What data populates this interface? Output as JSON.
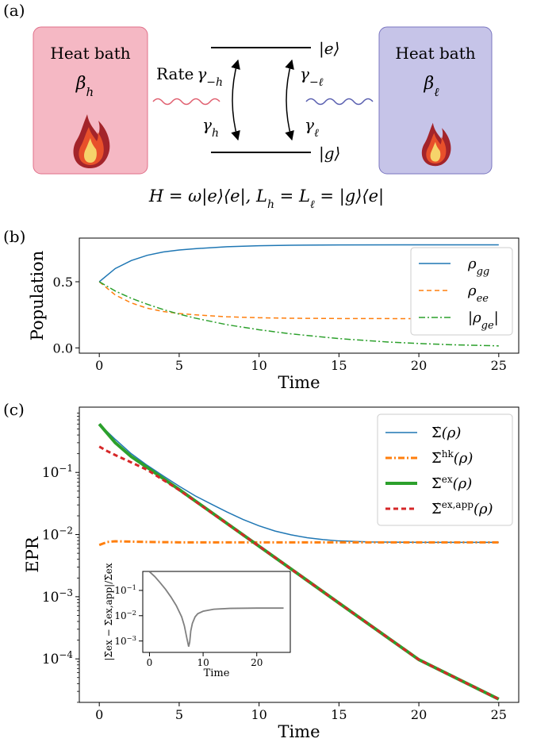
{
  "panel_a": {
    "label": "(a)",
    "left_bath": {
      "title": "Heat bath",
      "beta": "β",
      "beta_sub": "h"
    },
    "right_bath": {
      "title": "Heat bath",
      "beta": "β",
      "beta_sub": "ℓ"
    },
    "rate_word": "Rate",
    "rate_left_up": "γ",
    "rate_left_up_sub": "−h",
    "rate_left_down": "γ",
    "rate_left_down_sub": "h",
    "rate_right_up": "γ",
    "rate_right_up_sub": "−ℓ",
    "rate_right_down": "γ",
    "rate_right_down_sub": "ℓ",
    "ket_e": "|e⟩",
    "ket_g": "|g⟩",
    "hamiltonian": "H = ω|e⟩⟨e|,  L",
    "hamiltonian_sub_h": "h",
    "hamiltonian_mid": " = L",
    "hamiltonian_sub_l": "ℓ",
    "hamiltonian_end": " = |g⟩⟨e|",
    "colors": {
      "left_bath_fill": "#f5b8c4",
      "left_bath_stroke": "#e0708a",
      "right_bath_fill": "#c6c4e8",
      "right_bath_stroke": "#7a76c0",
      "left_wave": "#e06070",
      "right_wave": "#5a60b0",
      "flame_outer": "#a3242a",
      "flame_mid": "#e8502a",
      "flame_inner": "#f6d36a"
    }
  },
  "chart_data": [
    {
      "panel": "(b)",
      "type": "line",
      "xlabel": "Time",
      "ylabel": "Population",
      "xlim": [
        -1.25,
        26.25
      ],
      "ylim": [
        -0.04,
        0.83
      ],
      "xticks": [
        0,
        5,
        10,
        15,
        20,
        25
      ],
      "yticks": [
        0.0,
        0.5
      ],
      "ytick_labels": [
        "0.0",
        "0.5"
      ],
      "legend_position": "right",
      "series": [
        {
          "name": "ρgg",
          "label_main": "ρ",
          "label_sub": "gg",
          "color": "#1f77b4",
          "dash": "solid",
          "x": [
            0,
            1,
            2,
            3,
            4,
            5,
            6,
            8,
            10,
            12,
            15,
            20,
            25
          ],
          "y": [
            0.5,
            0.6,
            0.66,
            0.7,
            0.725,
            0.74,
            0.75,
            0.765,
            0.772,
            0.776,
            0.778,
            0.779,
            0.779
          ]
        },
        {
          "name": "ρee",
          "label_main": "ρ",
          "label_sub": "ee",
          "color": "#ff7f0e",
          "dash": "dashed",
          "x": [
            0,
            1,
            2,
            3,
            4,
            5,
            6,
            8,
            10,
            12,
            15,
            20,
            25
          ],
          "y": [
            0.5,
            0.4,
            0.34,
            0.3,
            0.275,
            0.26,
            0.25,
            0.235,
            0.228,
            0.224,
            0.222,
            0.221,
            0.221
          ]
        },
        {
          "name": "|ρge|",
          "label_main": "|ρ",
          "label_sub": "ge",
          "label_end": "|",
          "color": "#2ca02c",
          "dash": "dashdot",
          "x": [
            0,
            1,
            2,
            3,
            4,
            5,
            6,
            8,
            10,
            12,
            15,
            18,
            20,
            22,
            25
          ],
          "y": [
            0.5,
            0.43,
            0.375,
            0.33,
            0.29,
            0.255,
            0.225,
            0.175,
            0.137,
            0.106,
            0.07,
            0.045,
            0.033,
            0.024,
            0.015
          ]
        }
      ]
    },
    {
      "panel": "(c)",
      "type": "line",
      "xlabel": "Time",
      "ylabel": "EPR",
      "yscale": "log",
      "xlim": [
        -1.25,
        26.25
      ],
      "ylim_log10": [
        -4.7,
        0.05
      ],
      "xticks": [
        0,
        5,
        10,
        15,
        20,
        25
      ],
      "yticks_exp": [
        -1,
        -2,
        -3,
        -4
      ],
      "legend_position": "top-right",
      "series": [
        {
          "name": "Σ̇(ρ)",
          "color": "#1f77b4",
          "dash": "solid",
          "width": 1.5,
          "x": [
            0,
            1,
            2,
            3,
            4,
            5,
            6,
            7,
            8,
            9,
            10,
            11,
            12,
            13,
            14,
            15,
            17,
            20,
            25
          ],
          "y": [
            0.6,
            0.34,
            0.2,
            0.13,
            0.088,
            0.06,
            0.042,
            0.031,
            0.023,
            0.0175,
            0.0138,
            0.0114,
            0.0099,
            0.0089,
            0.0083,
            0.0079,
            0.0076,
            0.0075,
            0.0075
          ]
        },
        {
          "name": "Σ̇hk(ρ)",
          "color": "#ff7f0e",
          "dash": "dashdot",
          "width": 3,
          "x": [
            0,
            0.5,
            1,
            2,
            3,
            5,
            10,
            15,
            20,
            25
          ],
          "y": [
            0.0068,
            0.0076,
            0.0078,
            0.0077,
            0.0076,
            0.0075,
            0.0075,
            0.0075,
            0.0075,
            0.0075
          ]
        },
        {
          "name": "Σ̇ex(ρ)",
          "color": "#2ca02c",
          "dash": "solid",
          "width": 4,
          "x": [
            0,
            1,
            2,
            3,
            5,
            10,
            15,
            20,
            25
          ],
          "y": [
            0.6,
            0.3,
            0.18,
            0.12,
            0.053,
            0.0065,
            0.00079,
            9.7e-05,
            2.25e-05
          ]
        },
        {
          "name": "Σ̇ex,app(ρ)",
          "color": "#d62728",
          "dash": "dashed",
          "width": 3,
          "x": [
            0,
            0.5,
            1,
            2,
            3,
            5,
            10,
            15,
            20,
            25
          ],
          "y": [
            0.26,
            0.22,
            0.19,
            0.145,
            0.11,
            0.052,
            0.0065,
            0.00079,
            9.7e-05,
            2.25e-05
          ]
        }
      ],
      "legend_labels": [
        {
          "main": "Σ̇",
          "sup": "",
          "end": "(ρ)"
        },
        {
          "main": "Σ̇",
          "sup": "hk",
          "end": "(ρ)"
        },
        {
          "main": "Σ̇",
          "sup": "ex",
          "end": "(ρ)"
        },
        {
          "main": "Σ̇",
          "sup": "ex,app",
          "end": "(ρ)"
        }
      ]
    },
    {
      "panel": "(c) inset",
      "type": "line",
      "xlabel": "Time",
      "ylabel": "|Σ̇ex − Σ̇ex,app|/Σ̇ex",
      "yscale": "log",
      "xlim": [
        -1.25,
        26.25
      ],
      "ylim_log10": [
        -3.45,
        -0.25
      ],
      "xticks": [
        0,
        10,
        20
      ],
      "yticks_exp": [
        -1,
        -2,
        -3
      ],
      "series": [
        {
          "name": "relative error",
          "color": "#808080",
          "dash": "solid",
          "x": [
            0,
            1,
            2,
            3,
            4,
            5,
            6,
            6.5,
            7,
            7.3,
            7.5,
            7.7,
            8,
            8.5,
            9,
            10,
            12,
            15,
            20,
            25
          ],
          "y": [
            0.55,
            0.35,
            0.2,
            0.11,
            0.055,
            0.025,
            0.009,
            0.004,
            0.0012,
            0.0006,
            0.0009,
            0.0025,
            0.005,
            0.009,
            0.012,
            0.015,
            0.018,
            0.0195,
            0.02,
            0.02
          ]
        }
      ]
    }
  ]
}
